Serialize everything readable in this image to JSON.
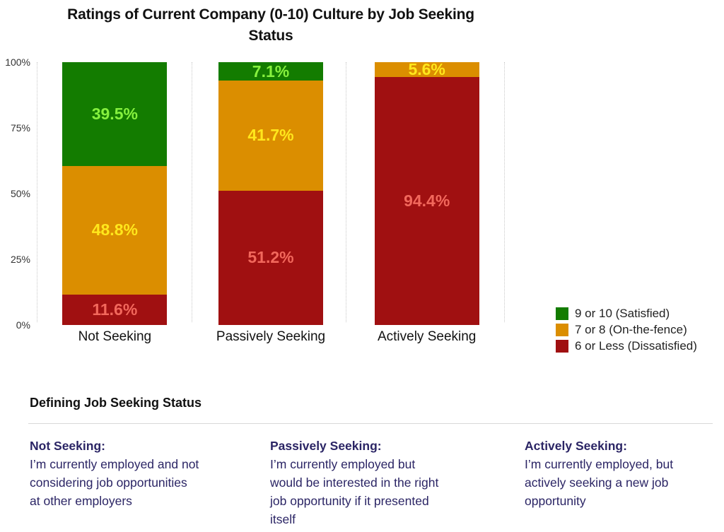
{
  "chart_data": {
    "type": "bar",
    "stacked": true,
    "percent": true,
    "title": "Ratings of Current Company (0-10) Culture by Job Seeking Status",
    "title_lines": [
      "Ratings of Current Company (0-10) Culture by Job Seeking",
      "Status"
    ],
    "categories": [
      "Not Seeking",
      "Passively Seeking",
      "Actively Seeking"
    ],
    "series": [
      {
        "name": "9 or 10 (Satisfied)",
        "color": "#137C00",
        "label_color": "#86F13E",
        "values": [
          39.5,
          7.1,
          0
        ]
      },
      {
        "name": "7 or 8 (On-the-fence)",
        "color": "#DB8E00",
        "label_color": "#FFE71C",
        "values": [
          48.8,
          41.7,
          5.6
        ]
      },
      {
        "name": "6 or Less (Dissatisfied)",
        "color": "#A01011",
        "label_color": "#F2685C",
        "values": [
          11.6,
          51.2,
          94.4
        ]
      }
    ],
    "y_ticks": [
      "100%",
      "75%",
      "50%",
      "25%",
      "0%"
    ],
    "ylim": [
      0,
      100
    ],
    "grid": "vertical-dotted",
    "legend_position": "bottom-right"
  },
  "definitions": {
    "heading": "Defining Job Seeking Status",
    "items": [
      {
        "term": "Not Seeking:",
        "description": "I’m currently employed and not considering job opportunities at other employers",
        "lines": [
          "I’m currently employed and not",
          "considering job opportunities",
          "at other employers"
        ]
      },
      {
        "term": "Passively Seeking:",
        "description": "I’m currently employed but would be interested in the right job opportunity if it presented itself",
        "lines": [
          "I’m currently employed but",
          "would be interested in the right",
          "job opportunity if it presented",
          "itself"
        ]
      },
      {
        "term": "Actively Seeking:",
        "description": "I’m currently employed, but actively seeking a new job opportunity",
        "lines": [
          "I’m currently employed, but",
          "actively seeking a new job",
          "opportunity"
        ]
      }
    ]
  }
}
